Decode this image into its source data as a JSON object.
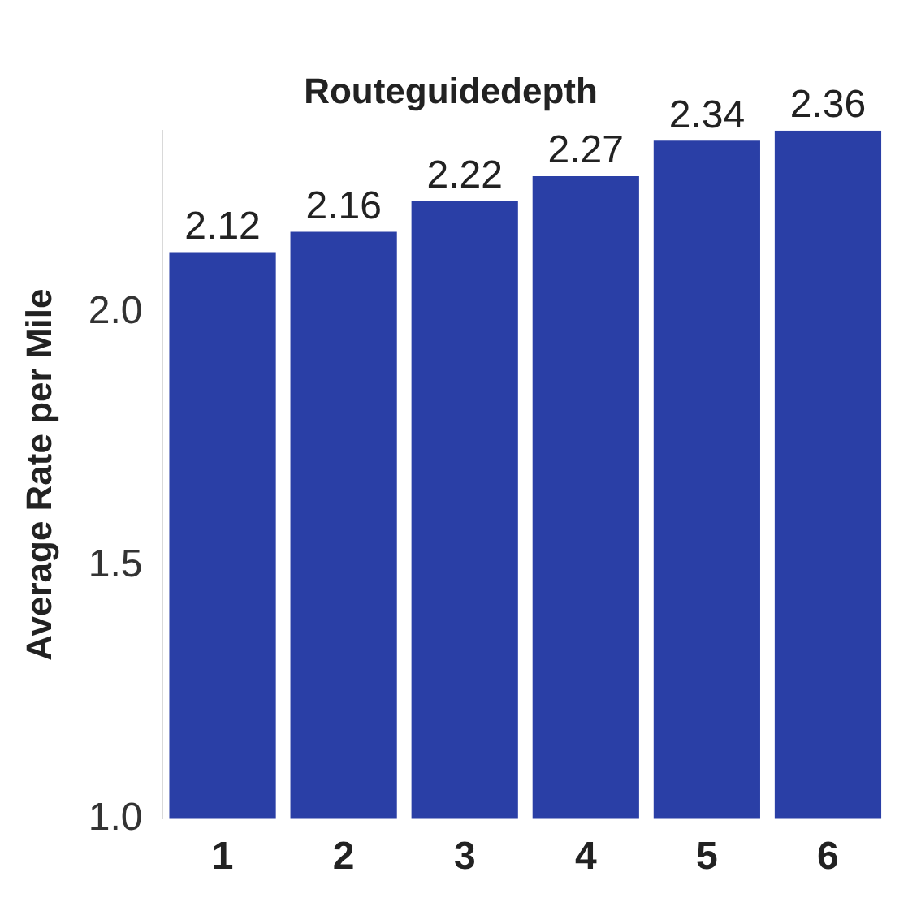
{
  "chart_data": {
    "type": "bar",
    "title": "Routeguidedepth",
    "ylabel": "Average Rate per Mile",
    "categories": [
      "1",
      "2",
      "3",
      "4",
      "5",
      "6"
    ],
    "values": [
      2.12,
      2.16,
      2.22,
      2.27,
      2.34,
      2.36
    ],
    "color": "#2a3fa6",
    "ylim": [
      1,
      2.36
    ],
    "yticks": [
      {
        "value": 1,
        "label": "1.0"
      },
      1.5,
      {
        "value": 2,
        "label": "2.0"
      }
    ],
    "grid": false,
    "legend": false,
    "data_labels": true
  }
}
